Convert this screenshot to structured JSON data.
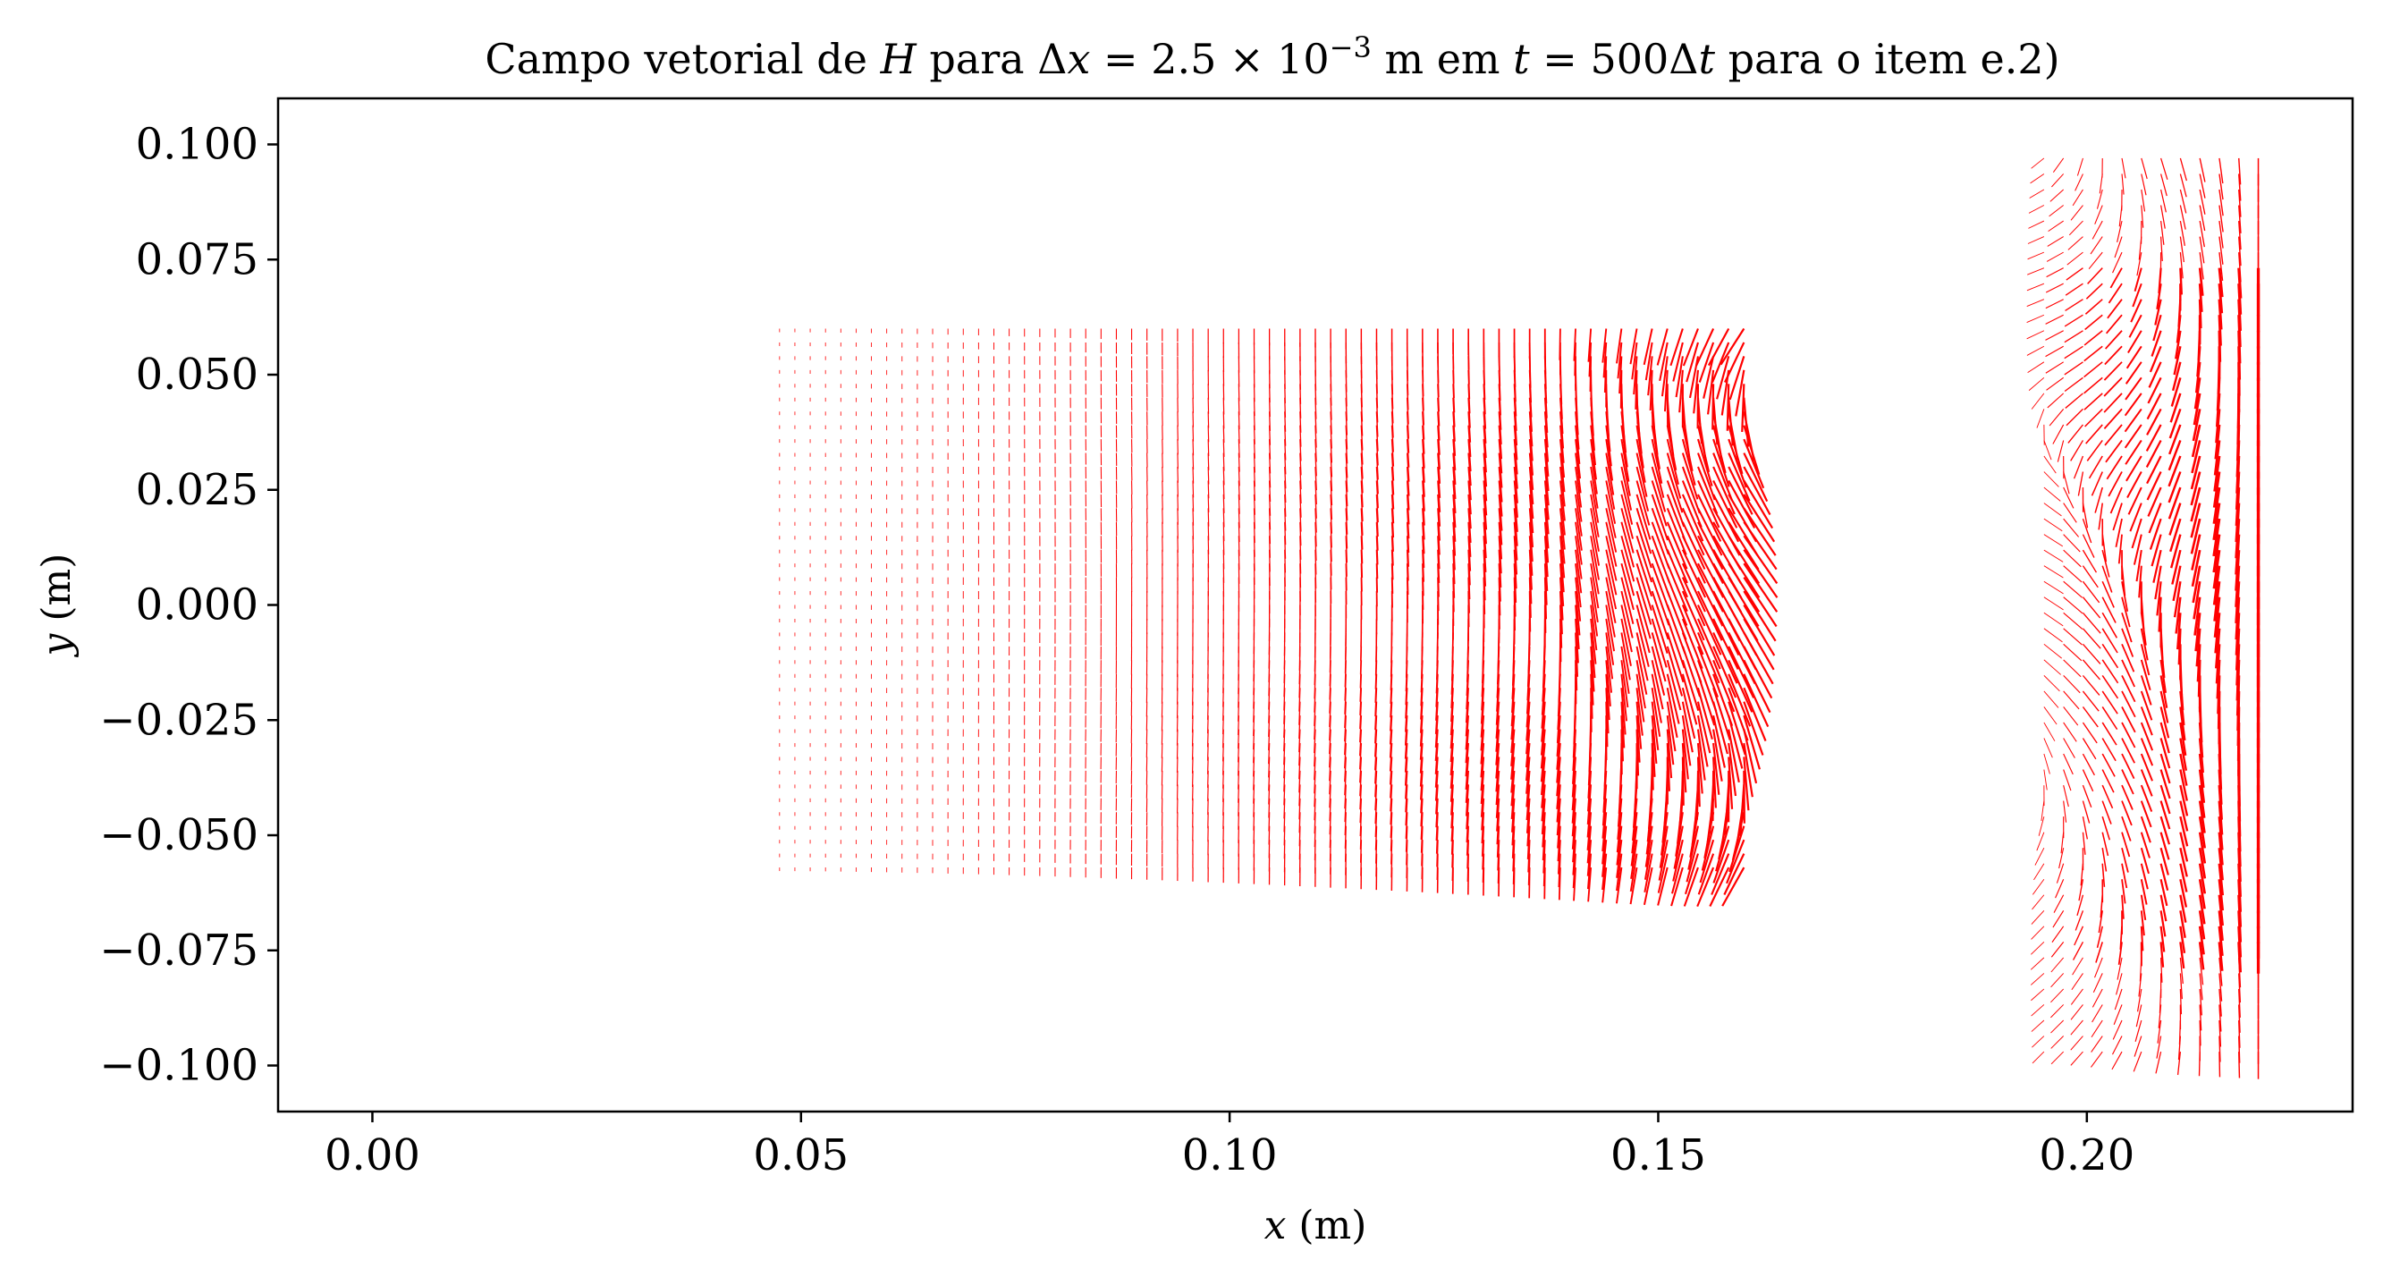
{
  "chart_data": {
    "type": "quiver",
    "title": {
      "prefix": "Campo vetorial de ",
      "var_h": "H",
      "mid1": " para Δ",
      "var_x": "x",
      "mid2": " = 2.5 × 10",
      "exp": "−3",
      "mid3": " m em ",
      "var_t": "t",
      "mid4": " = 500Δ",
      "var_t2": "t",
      "suffix": " para o item e.2)"
    },
    "xlabel": {
      "var": "x",
      "unit": " (m)"
    },
    "ylabel": {
      "var": "y",
      "unit": " (m)"
    },
    "xlim": [
      -0.011,
      0.231
    ],
    "ylim": [
      -0.11,
      0.11
    ],
    "xticks": [
      0.0,
      0.05,
      0.1,
      0.15,
      0.2
    ],
    "xtick_labels": [
      "0.00",
      "0.05",
      "0.10",
      "0.15",
      "0.20"
    ],
    "yticks": [
      0.1,
      0.075,
      0.05,
      0.025,
      0.0,
      -0.025,
      -0.05,
      -0.075,
      -0.1
    ],
    "ytick_labels": [
      "0.100",
      "0.075",
      "0.050",
      "0.025",
      "0.000",
      "−0.025",
      "−0.050",
      "−0.075",
      "−0.100"
    ],
    "grid": false,
    "arrow_color": "#ff0000",
    "field_regions": [
      {
        "name": "main front",
        "x_range": [
          0.0475,
          0.16
        ],
        "y_range": [
          -0.057,
          0.06
        ]
      },
      {
        "name": "right band",
        "x_range": [
          0.195,
          0.22
        ],
        "y_range": [
          -0.097,
          0.097
        ]
      }
    ]
  }
}
